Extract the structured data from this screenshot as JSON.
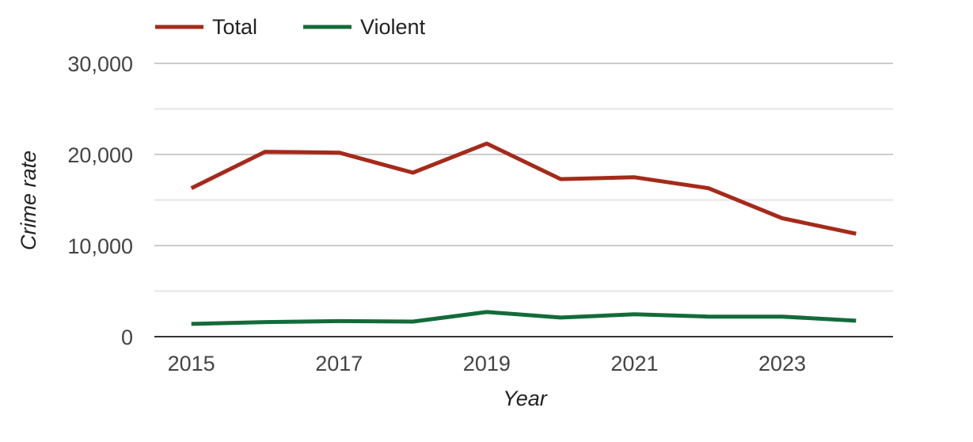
{
  "chart_data": {
    "type": "line",
    "title": "",
    "xlabel": "Year",
    "ylabel": "Crime rate",
    "x": [
      2015,
      2016,
      2017,
      2018,
      2019,
      2020,
      2021,
      2022,
      2023,
      2024
    ],
    "x_ticks": [
      "2015",
      "2017",
      "2019",
      "2021",
      "2023"
    ],
    "x_tick_values": [
      2015,
      2017,
      2019,
      2021,
      2023
    ],
    "xlim": [
      2014.5,
      2024.5
    ],
    "y_ticks": [
      "0",
      "10,000",
      "20,000",
      "30,000"
    ],
    "y_tick_values": [
      0,
      10000,
      20000,
      30000
    ],
    "ylim": [
      0,
      30000
    ],
    "grid": true,
    "legend_position": "top-left",
    "series": [
      {
        "name": "Total",
        "color": "#a52a1a",
        "values": [
          16300,
          20300,
          20200,
          18000,
          21200,
          17300,
          17500,
          16300,
          13000,
          11300
        ]
      },
      {
        "name": "Violent",
        "color": "#136b3a",
        "values": [
          1400,
          1600,
          1700,
          1650,
          2700,
          2100,
          2450,
          2200,
          2200,
          1750
        ]
      }
    ]
  }
}
